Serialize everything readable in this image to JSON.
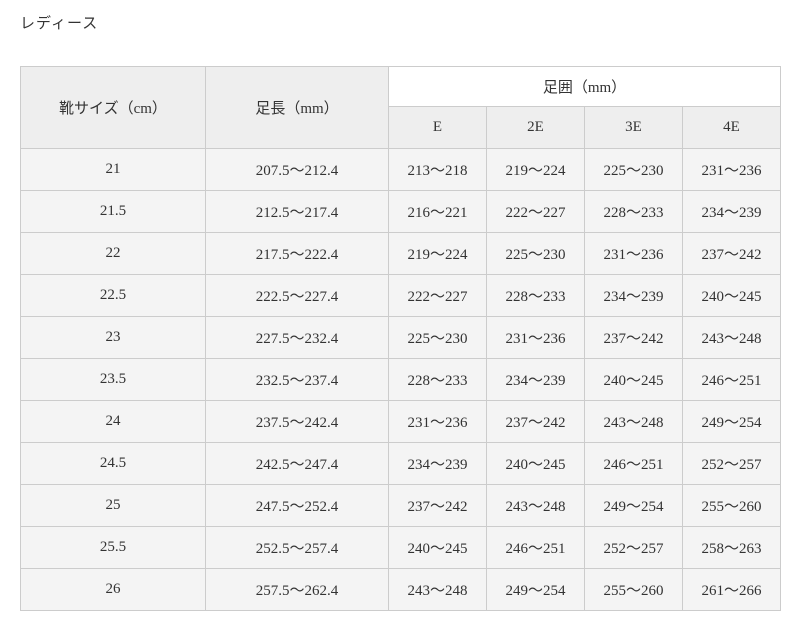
{
  "title": "レディース",
  "colors": {
    "header_bg": "#eeeeee",
    "span_header_bg": "#ffffff",
    "cell_bg": "#f4f4f4",
    "border": "#cccccc",
    "text": "#333333",
    "page_bg": "#ffffff"
  },
  "table": {
    "col_headers": {
      "shoe_size": "靴サイズ（cm）",
      "foot_length": "足長（mm）",
      "foot_circumference": "足囲（mm）",
      "widths": [
        "E",
        "2E",
        "3E",
        "4E"
      ]
    },
    "rows": [
      {
        "size": "21",
        "length": "207.5〜212.4",
        "widths": [
          "213〜218",
          "219〜224",
          "225〜230",
          "231〜236"
        ]
      },
      {
        "size": "21.5",
        "length": "212.5〜217.4",
        "widths": [
          "216〜221",
          "222〜227",
          "228〜233",
          "234〜239"
        ]
      },
      {
        "size": "22",
        "length": "217.5〜222.4",
        "widths": [
          "219〜224",
          "225〜230",
          "231〜236",
          "237〜242"
        ]
      },
      {
        "size": "22.5",
        "length": "222.5〜227.4",
        "widths": [
          "222〜227",
          "228〜233",
          "234〜239",
          "240〜245"
        ]
      },
      {
        "size": "23",
        "length": "227.5〜232.4",
        "widths": [
          "225〜230",
          "231〜236",
          "237〜242",
          "243〜248"
        ]
      },
      {
        "size": "23.5",
        "length": "232.5〜237.4",
        "widths": [
          "228〜233",
          "234〜239",
          "240〜245",
          "246〜251"
        ]
      },
      {
        "size": "24",
        "length": "237.5〜242.4",
        "widths": [
          "231〜236",
          "237〜242",
          "243〜248",
          "249〜254"
        ]
      },
      {
        "size": "24.5",
        "length": "242.5〜247.4",
        "widths": [
          "234〜239",
          "240〜245",
          "246〜251",
          "252〜257"
        ]
      },
      {
        "size": "25",
        "length": "247.5〜252.4",
        "widths": [
          "237〜242",
          "243〜248",
          "249〜254",
          "255〜260"
        ]
      },
      {
        "size": "25.5",
        "length": "252.5〜257.4",
        "widths": [
          "240〜245",
          "246〜251",
          "252〜257",
          "258〜263"
        ]
      },
      {
        "size": "26",
        "length": "257.5〜262.4",
        "widths": [
          "243〜248",
          "249〜254",
          "255〜260",
          "261〜266"
        ]
      }
    ]
  }
}
